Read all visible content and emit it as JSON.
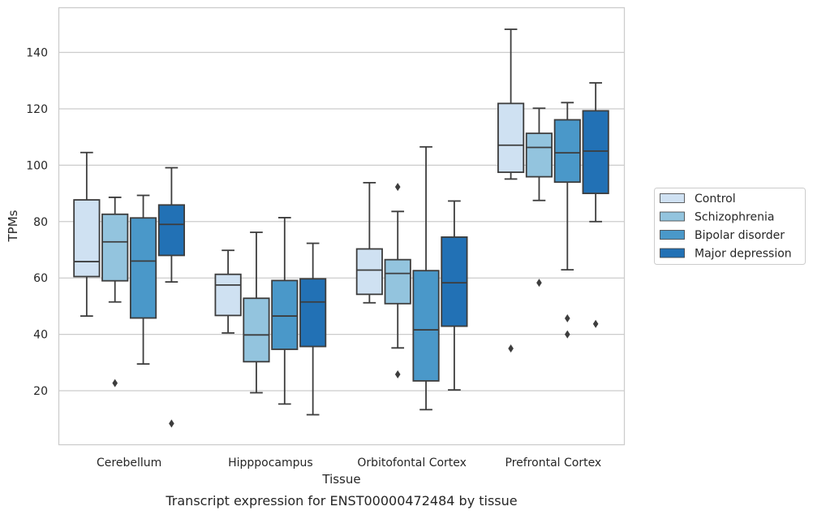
{
  "chart_data": {
    "type": "box",
    "title": "",
    "caption": "Transcript expression for ENST00000472484 by tissue",
    "xlabel": "Tissue",
    "ylabel": "TPMs",
    "ylim": [
      1,
      156
    ],
    "yticks": [
      20,
      40,
      60,
      80,
      100,
      120,
      140
    ],
    "grid": "horizontal",
    "legend_position": "right",
    "categories": [
      "Cerebellum",
      "Hipppocampus",
      "Orbitofontal Cortex",
      "Prefrontal Cortex"
    ],
    "series": [
      {
        "name": "Control",
        "color": "#cfe1f2",
        "boxes": [
          {
            "whislo": 46.5,
            "q1": 60.5,
            "med": 65.8,
            "q3": 87.7,
            "whishi": 104.5,
            "fliers": []
          },
          {
            "whislo": 40.5,
            "q1": 46.7,
            "med": 57.5,
            "q3": 61.3,
            "whishi": 69.8,
            "fliers": []
          },
          {
            "whislo": 51.2,
            "q1": 54.2,
            "med": 62.8,
            "q3": 70.3,
            "whishi": 93.8,
            "fliers": []
          },
          {
            "whislo": 95.1,
            "q1": 97.5,
            "med": 107.1,
            "q3": 121.9,
            "whishi": 148.2,
            "fliers": [
              35.0
            ]
          }
        ]
      },
      {
        "name": "Schizophrenia",
        "color": "#93c4de",
        "boxes": [
          {
            "whislo": 51.5,
            "q1": 59.0,
            "med": 72.8,
            "q3": 82.6,
            "whishi": 88.6,
            "fliers": [
              22.7
            ]
          },
          {
            "whislo": 19.3,
            "q1": 30.3,
            "med": 39.8,
            "q3": 52.8,
            "whishi": 76.2,
            "fliers": []
          },
          {
            "whislo": 35.2,
            "q1": 50.9,
            "med": 61.6,
            "q3": 66.5,
            "whishi": 83.6,
            "fliers": [
              92.3,
              25.8
            ]
          },
          {
            "whislo": 87.5,
            "q1": 95.9,
            "med": 106.3,
            "q3": 111.3,
            "whishi": 120.2,
            "fliers": [
              58.3
            ]
          }
        ]
      },
      {
        "name": "Bipolar disorder",
        "color": "#4a98c9",
        "boxes": [
          {
            "whislo": 29.5,
            "q1": 45.8,
            "med": 66.0,
            "q3": 81.3,
            "whishi": 89.3,
            "fliers": []
          },
          {
            "whislo": 15.3,
            "q1": 34.7,
            "med": 46.5,
            "q3": 59.1,
            "whishi": 81.4,
            "fliers": []
          },
          {
            "whislo": 13.3,
            "q1": 23.5,
            "med": 41.6,
            "q3": 62.6,
            "whishi": 106.5,
            "fliers": []
          },
          {
            "whislo": 62.9,
            "q1": 94.0,
            "med": 104.4,
            "q3": 116.1,
            "whishi": 122.2,
            "fliers": [
              45.7,
              40.0
            ]
          }
        ]
      },
      {
        "name": "Major depression",
        "color": "#2271b5",
        "boxes": [
          {
            "whislo": 58.6,
            "q1": 68.0,
            "med": 79.0,
            "q3": 85.9,
            "whishi": 99.1,
            "fliers": [
              8.4
            ]
          },
          {
            "whislo": 11.5,
            "q1": 35.7,
            "med": 51.5,
            "q3": 59.7,
            "whishi": 72.3,
            "fliers": []
          },
          {
            "whislo": 20.3,
            "q1": 42.9,
            "med": 58.3,
            "q3": 74.5,
            "whishi": 87.3,
            "fliers": []
          },
          {
            "whislo": 80.0,
            "q1": 90.0,
            "med": 105.0,
            "q3": 119.3,
            "whishi": 129.2,
            "fliers": [
              43.7
            ]
          }
        ]
      }
    ]
  }
}
